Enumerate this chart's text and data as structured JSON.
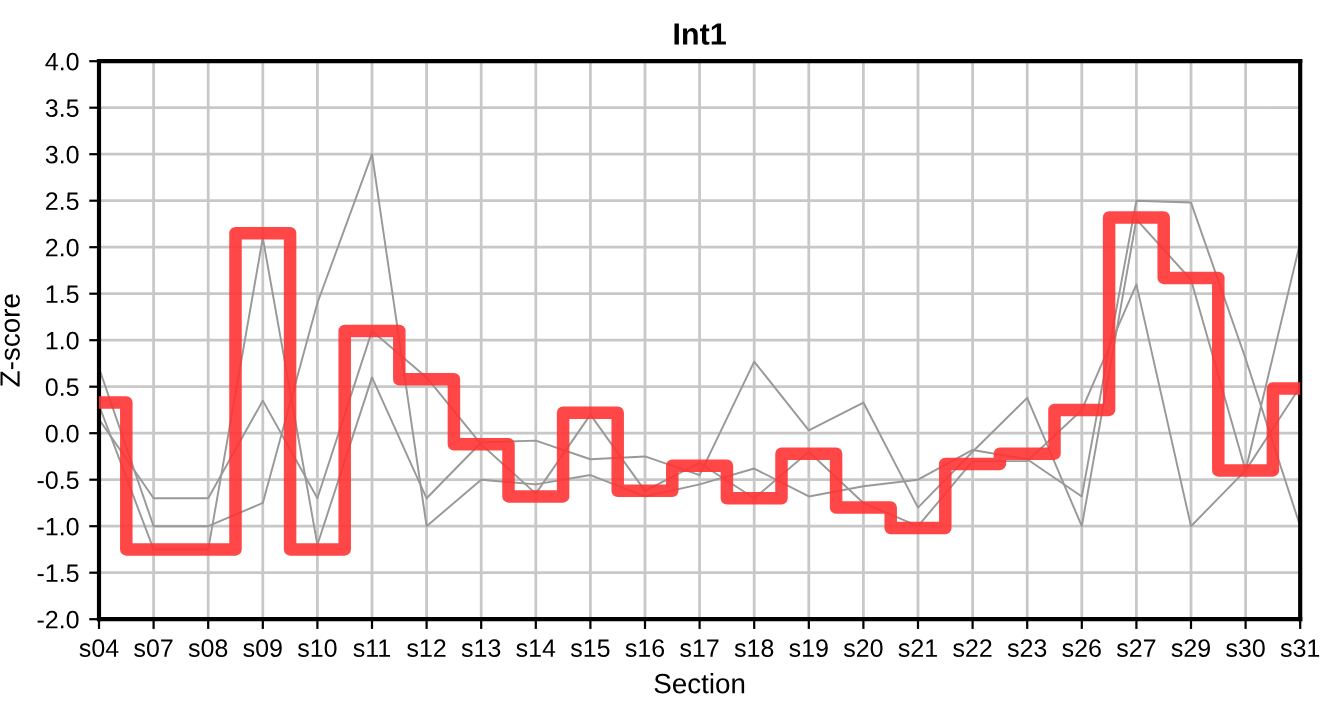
{
  "chart_data": {
    "type": "line",
    "title": "Int1",
    "xlabel": "Section",
    "ylabel": "Z-score",
    "categories": [
      "s04",
      "s07",
      "s08",
      "s09",
      "s10",
      "s11",
      "s12",
      "s13",
      "s14",
      "s15",
      "s16",
      "s17",
      "s18",
      "s19",
      "s20",
      "s21",
      "s22",
      "s23",
      "s26",
      "s27",
      "s29",
      "s30",
      "s31"
    ],
    "series": [
      {
        "color": "#999999",
        "values": [
          0.7,
          -1.0,
          -1.0,
          -0.75,
          1.4,
          3.0,
          -1.0,
          -0.5,
          -0.55,
          -0.45,
          -0.68,
          -0.55,
          -0.38,
          -0.68,
          -0.57,
          -0.5,
          -0.18,
          -0.28,
          -0.68,
          2.5,
          2.48,
          0.8,
          -1.0
        ]
      },
      {
        "color": "#999999",
        "values": [
          0.3,
          -1.25,
          -1.25,
          2.1,
          -1.2,
          0.6,
          -0.7,
          -0.1,
          -0.08,
          -0.28,
          -0.25,
          -0.45,
          0.77,
          0.03,
          0.33,
          -0.8,
          -0.2,
          0.38,
          -1.0,
          2.3,
          1.65,
          -0.4,
          2.05
        ]
      },
      {
        "color": "#999999",
        "values": [
          0.15,
          -0.7,
          -0.7,
          0.35,
          -0.7,
          1.1,
          0.6,
          -0.12,
          -0.65,
          0.2,
          -0.62,
          -0.32,
          -0.7,
          -0.2,
          -0.75,
          -1.0,
          -0.3,
          -0.3,
          0.25,
          1.6,
          -1.0,
          -0.4,
          0.5
        ]
      },
      {
        "type": "step",
        "color": "#ff3333",
        "values": [
          0.33,
          -1.25,
          -1.25,
          2.15,
          -1.25,
          1.1,
          0.58,
          -0.12,
          -0.68,
          0.22,
          -0.62,
          -0.35,
          -0.7,
          -0.22,
          -0.8,
          -1.02,
          -0.33,
          -0.22,
          0.25,
          2.32,
          1.67,
          -0.4,
          0.48
        ]
      }
    ],
    "ylim": [
      -2.0,
      4.0
    ],
    "yticks": [
      {
        "value": -2.0,
        "label": "-2.0"
      },
      {
        "value": -1.5,
        "label": "-1.5"
      },
      {
        "value": -1.0,
        "label": "-1.0"
      },
      {
        "value": -0.5,
        "label": "-0.5"
      },
      {
        "value": 0.0,
        "label": "0.0"
      },
      {
        "value": 0.5,
        "label": "0.5"
      },
      {
        "value": 1.0,
        "label": "1.0"
      },
      {
        "value": 1.5,
        "label": "1.5"
      },
      {
        "value": 2.0,
        "label": "2.0"
      },
      {
        "value": 2.5,
        "label": "2.5"
      },
      {
        "value": 3.0,
        "label": "3.0"
      },
      {
        "value": 3.5,
        "label": "3.5"
      },
      {
        "value": 4.0,
        "label": "4.0"
      }
    ],
    "grid": true,
    "legend": false
  }
}
